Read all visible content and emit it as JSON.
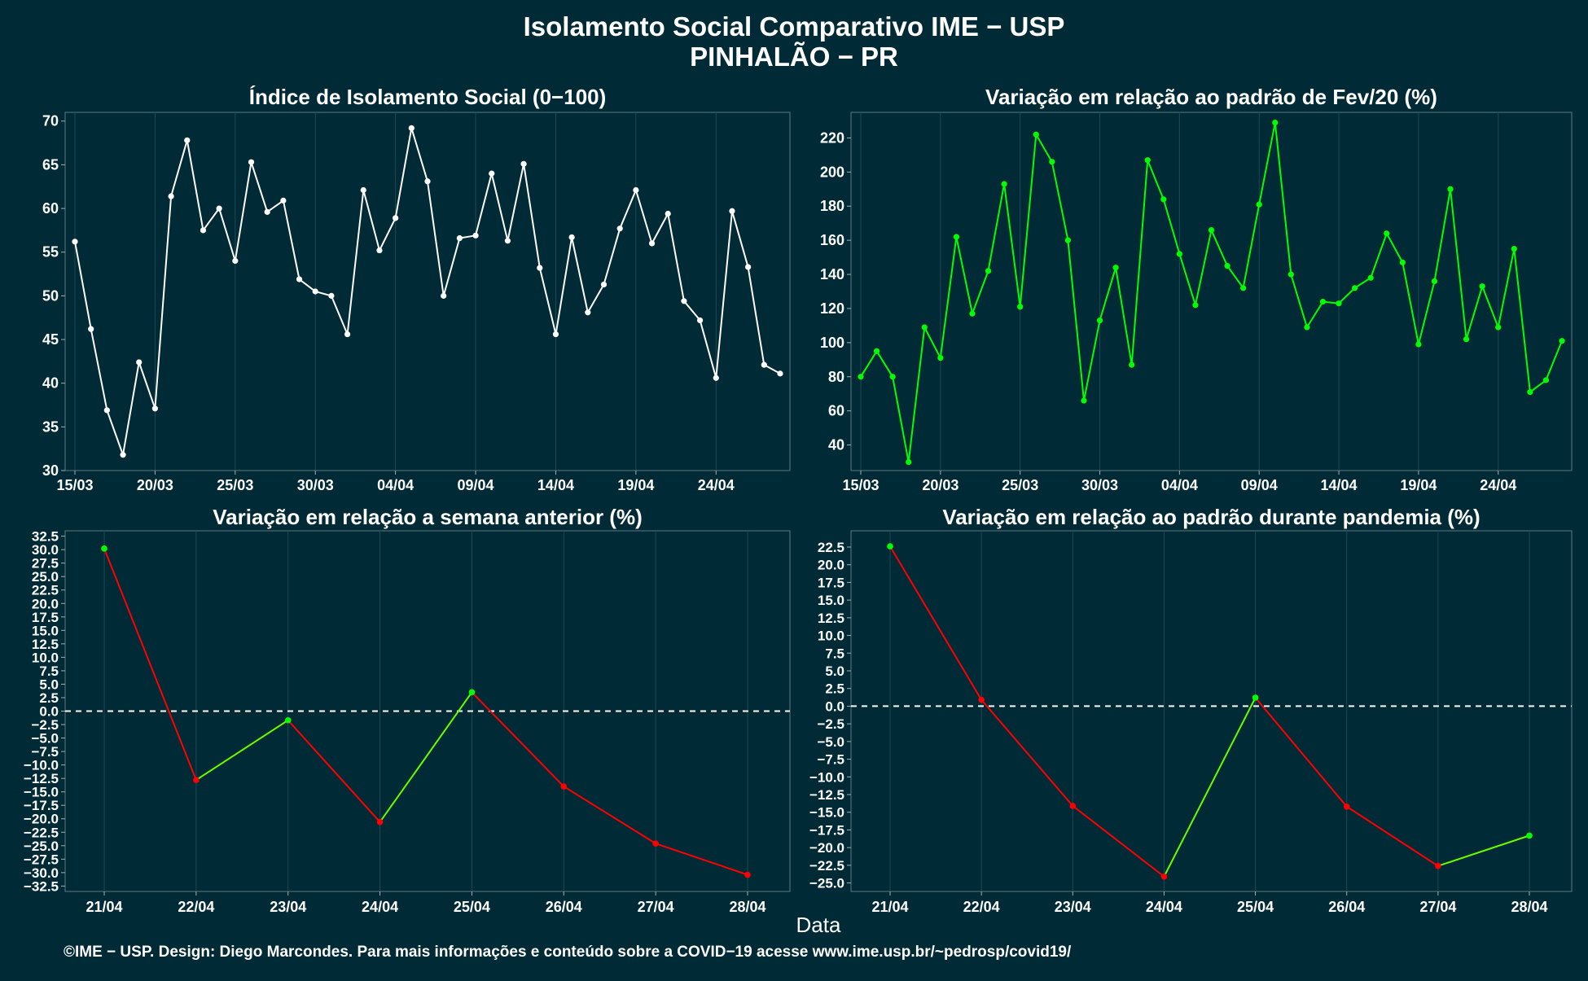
{
  "title": "Isolamento Social Comparativo IME − USP",
  "subtitle": "PINHALÃO − PR",
  "xlabel": "Data",
  "footer": "©IME − USP. Design: Diego Marcondes. Para mais informações e conteúdo sobre a COVID−19 acesse www.ime.usp.br/~pedrosp/covid19/",
  "colors": {
    "background": "#002a35",
    "line_white": "#ffffff",
    "green": "#00ff00",
    "red": "#ff0000",
    "up_segment": "#66ff00"
  },
  "chart_data": [
    {
      "type": "line",
      "title": "Índice de Isolamento Social (0−0100)",
      "title_text": "Índice de Isolamento Social (0−100)",
      "x": [
        "15/03",
        "16/03",
        "17/03",
        "18/03",
        "19/03",
        "20/03",
        "21/03",
        "22/03",
        "23/03",
        "24/03",
        "25/03",
        "26/03",
        "27/03",
        "28/03",
        "29/03",
        "30/03",
        "31/03",
        "01/04",
        "02/04",
        "03/04",
        "04/04",
        "05/04",
        "06/04",
        "07/04",
        "08/04",
        "09/04",
        "10/04",
        "11/04",
        "12/04",
        "13/04",
        "14/04",
        "15/04",
        "16/04",
        "17/04",
        "18/04",
        "19/04",
        "20/04",
        "21/04",
        "22/04",
        "23/04",
        "24/04",
        "25/04",
        "26/04",
        "27/04",
        "28/04"
      ],
      "values": [
        56.2,
        46.2,
        36.9,
        31.8,
        42.4,
        37.1,
        61.4,
        67.8,
        57.5,
        60.0,
        54.0,
        65.3,
        59.6,
        60.9,
        51.9,
        50.5,
        50.0,
        45.6,
        62.1,
        55.2,
        58.9,
        69.2,
        63.1,
        50.0,
        56.6,
        56.9,
        64.0,
        56.3,
        65.1,
        53.2,
        45.6,
        56.7,
        48.1,
        51.3,
        57.7,
        62.1,
        56.0,
        59.4,
        49.4,
        47.2,
        40.6,
        59.7,
        53.3,
        42.1,
        41.1
      ],
      "ylim": [
        30,
        71
      ],
      "yticks": [
        "30",
        "35",
        "40",
        "45",
        "50",
        "55",
        "60",
        "65",
        "70"
      ],
      "xticks": [
        "15/03",
        "20/03",
        "25/03",
        "30/03",
        "04/04",
        "09/04",
        "14/04",
        "19/04",
        "24/04"
      ],
      "color": "#ffffff"
    },
    {
      "type": "line",
      "title_text": "Variação em relação ao padrão de Fev/20 (%)",
      "x": [
        "15/03",
        "16/03",
        "17/03",
        "18/03",
        "19/03",
        "20/03",
        "21/03",
        "22/03",
        "23/03",
        "24/03",
        "25/03",
        "26/03",
        "27/03",
        "28/03",
        "29/03",
        "30/03",
        "31/03",
        "01/04",
        "02/04",
        "03/04",
        "04/04",
        "05/04",
        "06/04",
        "07/04",
        "08/04",
        "09/04",
        "10/04",
        "11/04",
        "12/04",
        "13/04",
        "14/04",
        "15/04",
        "16/04",
        "17/04",
        "18/04",
        "19/04",
        "20/04",
        "21/04",
        "22/04",
        "23/04",
        "24/04",
        "25/04",
        "26/04",
        "27/04",
        "28/04"
      ],
      "values": [
        80,
        95,
        80,
        30,
        109,
        91,
        162,
        117,
        142,
        193,
        121,
        222,
        206,
        160,
        66,
        113,
        144,
        87,
        207,
        184,
        152,
        122,
        166,
        145,
        132,
        181,
        229,
        140,
        109,
        124,
        123,
        132,
        138,
        164,
        147,
        99,
        136,
        190,
        102,
        133,
        109,
        155,
        71,
        78,
        101
      ],
      "ylim": [
        25,
        235
      ],
      "yticks": [
        "40",
        "60",
        "80",
        "100",
        "120",
        "140",
        "160",
        "180",
        "200",
        "220"
      ],
      "xticks": [
        "15/03",
        "20/03",
        "25/03",
        "30/03",
        "04/04",
        "09/04",
        "14/04",
        "19/04",
        "24/04"
      ],
      "color": "#00ff00"
    },
    {
      "type": "line",
      "title_text": "Variação em relação a semana anterior (%)",
      "x": [
        "21/04",
        "22/04",
        "23/04",
        "24/04",
        "25/04",
        "26/04",
        "27/04",
        "28/04"
      ],
      "values": [
        30.2,
        -12.8,
        -1.7,
        -20.6,
        3.5,
        -14.0,
        -24.6,
        -30.4
      ],
      "ylim": [
        -33.5,
        33.5
      ],
      "yticks": [
        "32.5",
        "30.0",
        "27.5",
        "25.0",
        "22.5",
        "20.0",
        "17.5",
        "15.0",
        "12.5",
        "10.0",
        "7.5",
        "5.0",
        "2.5",
        "0.0",
        "−2.5",
        "−5.0",
        "−7.5",
        "−10.0",
        "−12.5",
        "−15.0",
        "−17.5",
        "−20.0",
        "−22.5",
        "−25.0",
        "−27.5",
        "−30.0",
        "−32.5"
      ],
      "reference_line": 0
    },
    {
      "type": "line",
      "title_text": "Variação em relação ao padrão durante pandemia (%)",
      "x": [
        "21/04",
        "22/04",
        "23/04",
        "24/04",
        "25/04",
        "26/04",
        "27/04",
        "28/04"
      ],
      "values": [
        22.6,
        0.9,
        -14.1,
        -24.1,
        1.2,
        -14.2,
        -22.6,
        -18.3
      ],
      "ylim": [
        -26.2,
        24.8
      ],
      "yticks": [
        "22.5",
        "20.0",
        "17.5",
        "15.0",
        "12.5",
        "10.0",
        "7.5",
        "5.0",
        "2.5",
        "0.0",
        "−2.5",
        "−5.0",
        "−7.5",
        "−10.0",
        "−12.5",
        "−15.0",
        "−17.5",
        "−20.0",
        "−22.5",
        "−25.0"
      ],
      "reference_line": 0
    }
  ]
}
